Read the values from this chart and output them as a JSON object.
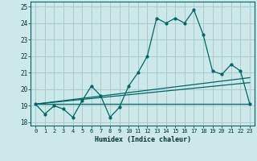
{
  "xlabel": "Humidex (Indice chaleur)",
  "bg_color": "#cce8e8",
  "grid_color": "#aacccc",
  "line_color": "#006666",
  "xlim": [
    -0.5,
    23.5
  ],
  "ylim": [
    17.8,
    25.3
  ],
  "yticks": [
    18,
    19,
    20,
    21,
    22,
    23,
    24,
    25
  ],
  "xticks": [
    0,
    1,
    2,
    3,
    4,
    5,
    6,
    7,
    8,
    9,
    10,
    11,
    12,
    13,
    14,
    15,
    16,
    17,
    18,
    19,
    20,
    21,
    22,
    23
  ],
  "line1_x": [
    0,
    1,
    2,
    3,
    4,
    5,
    6,
    7,
    8,
    9,
    10,
    11,
    12,
    13,
    14,
    15,
    16,
    17,
    18,
    19,
    20,
    21,
    22,
    23
  ],
  "line1_y": [
    19.1,
    18.5,
    19.0,
    18.8,
    18.3,
    19.3,
    20.2,
    19.6,
    18.3,
    18.9,
    20.2,
    21.0,
    22.0,
    24.3,
    24.0,
    24.3,
    24.0,
    24.8,
    23.3,
    21.1,
    20.9,
    21.5,
    21.1,
    19.1
  ],
  "line2_x": [
    0,
    23
  ],
  "line2_y": [
    19.1,
    20.7
  ],
  "line3_x": [
    0,
    23
  ],
  "line3_y": [
    19.1,
    20.4
  ],
  "line4_x": [
    0,
    23
  ],
  "line4_y": [
    19.1,
    19.1
  ]
}
